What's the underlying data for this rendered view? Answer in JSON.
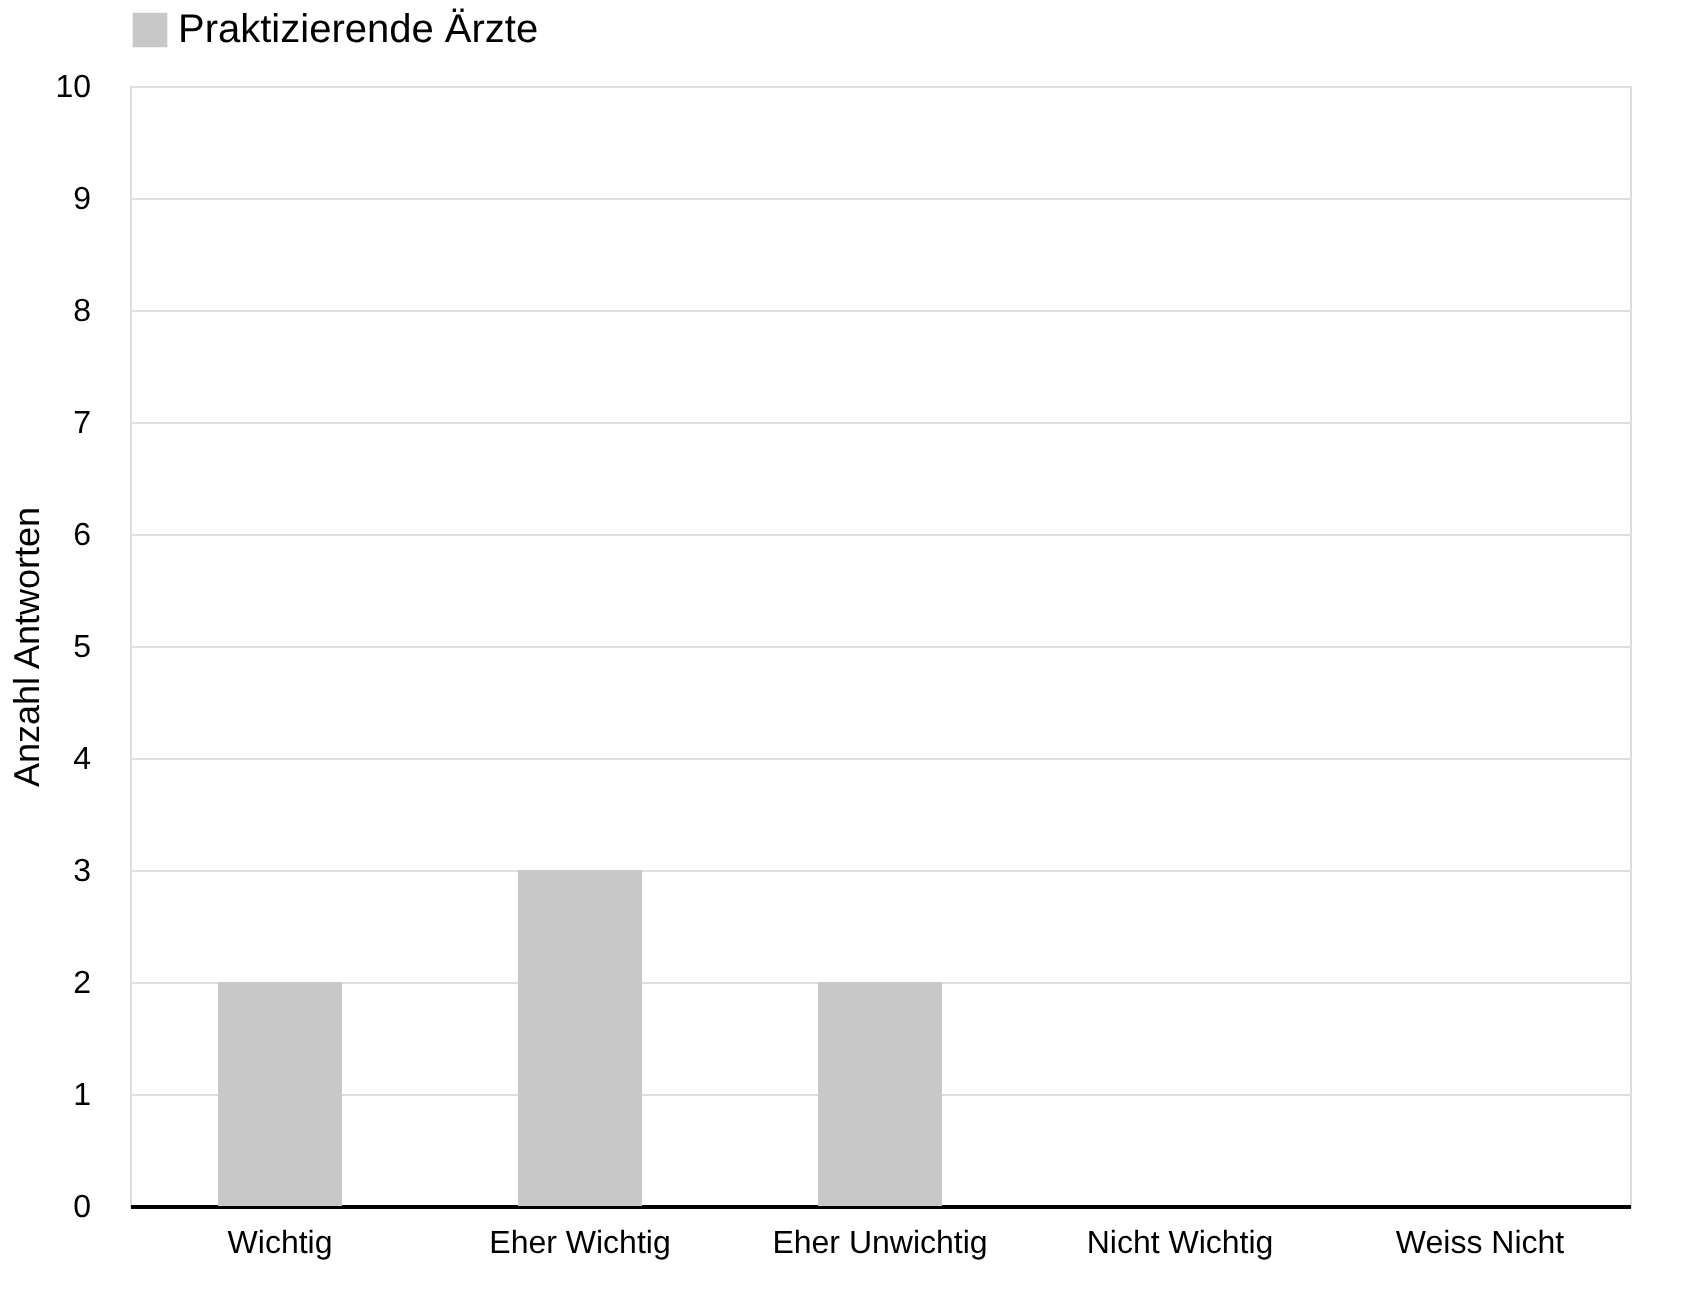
{
  "chart_data": {
    "type": "bar",
    "ylabel": "Anzahl  Antworten",
    "categories": [
      "Wichtig",
      "Eher Wichtig",
      "Eher Unwichtig",
      "Nicht Wichtig",
      "Weiss Nicht"
    ],
    "series": [
      {
        "name": "Praktizierende Ärzte",
        "color": "#c8c8c8",
        "values": [
          2,
          3,
          2,
          0,
          0
        ]
      }
    ],
    "ylim": [
      0,
      10
    ],
    "yticks": [
      0,
      1,
      2,
      3,
      4,
      5,
      6,
      7,
      8,
      9,
      10
    ],
    "grid": "y",
    "legend": "top"
  }
}
